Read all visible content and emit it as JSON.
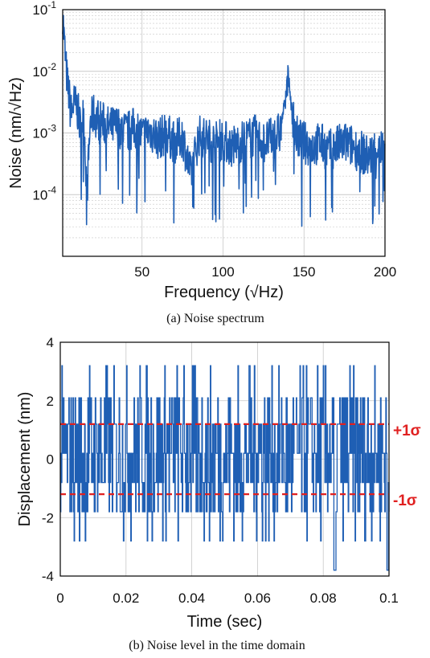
{
  "colors": {
    "line": "#1f5fb4",
    "sigma": "#e02020",
    "grid": "#c8c8c8",
    "axis": "#000000"
  },
  "chart_data": [
    {
      "type": "line",
      "caption": "(a) Noise spectrum",
      "xlabel": "Frequency (√Hz)",
      "ylabel": "Noise (nm/√Hz)",
      "xlim": [
        1,
        200
      ],
      "ylim": [
        1e-05,
        0.1
      ],
      "yscale": "log",
      "grid": true,
      "xticks": [
        {
          "v": 50,
          "label": "50"
        },
        {
          "v": 100,
          "label": "100"
        },
        {
          "v": 150,
          "label": "150"
        },
        {
          "v": 200,
          "label": "200"
        }
      ],
      "yticks": [
        {
          "v": 0.1,
          "base": "10",
          "exp": "-1"
        },
        {
          "v": 0.01,
          "base": "10",
          "exp": "-2"
        },
        {
          "v": 0.001,
          "base": "10",
          "exp": "-3"
        },
        {
          "v": 0.0001,
          "base": "10",
          "exp": "-4"
        }
      ],
      "series": [
        {
          "x": [
            1,
            2,
            3,
            4,
            5,
            6,
            8,
            10,
            12,
            14,
            16,
            18,
            20,
            25,
            30,
            35,
            40,
            45,
            50,
            55,
            60,
            65,
            70,
            75,
            80,
            85,
            90,
            95,
            100,
            105,
            110,
            115,
            120,
            125,
            130,
            135,
            138,
            140,
            142,
            145,
            150,
            155,
            160,
            165,
            170,
            175,
            180,
            185,
            190,
            195,
            200
          ],
          "y": [
            0.09,
            0.03,
            0.012,
            0.006,
            0.004,
            0.002,
            0.003,
            0.0025,
            0.0012,
            0.002,
            0.0001,
            0.0015,
            0.002,
            0.0015,
            0.0012,
            0.0013,
            0.001,
            0.0012,
            0.0009,
            0.0011,
            0.0008,
            0.001,
            0.0007,
            0.0009,
            0.0002,
            0.0009,
            0.0008,
            0.0007,
            0.0008,
            0.0006,
            0.0007,
            0.0008,
            0.0009,
            0.0007,
            0.0008,
            0.001,
            0.003,
            0.011,
            0.003,
            0.0009,
            0.0007,
            0.0006,
            0.0007,
            0.0005,
            0.0006,
            0.0007,
            0.0006,
            0.0005,
            0.0004,
            0.0006,
            0.0005
          ]
        }
      ]
    },
    {
      "type": "line",
      "caption": "(b) Noise level in the time domain",
      "xlabel": "Time (sec)",
      "ylabel": "Displacement (nm)",
      "xlim": [
        0,
        0.1
      ],
      "ylim": [
        -4,
        4
      ],
      "grid": true,
      "xticks": [
        {
          "v": 0,
          "label": "0"
        },
        {
          "v": 0.02,
          "label": "0.02"
        },
        {
          "v": 0.04,
          "label": "0.04"
        },
        {
          "v": 0.06,
          "label": "0.06"
        },
        {
          "v": 0.08,
          "label": "0.08"
        },
        {
          "v": 0.1,
          "label": "0.1"
        }
      ],
      "yticks": [
        {
          "v": 4,
          "label": "4"
        },
        {
          "v": 2,
          "label": "2"
        },
        {
          "v": 0,
          "label": "0"
        },
        {
          "v": -2,
          "label": "-2"
        },
        {
          "v": -4,
          "label": "-4"
        }
      ],
      "levels": [
        -2.8,
        -1.8,
        -0.8,
        0.2,
        1.2,
        2.1,
        3.2
      ],
      "sigma": [
        {
          "value": 1.2,
          "label": "+1σ"
        },
        {
          "value": -1.2,
          "label": "-1σ"
        }
      ],
      "series": [
        {
          "x": [
            0,
            0.005,
            0.01,
            0.015,
            0.02,
            0.025,
            0.03,
            0.035,
            0.04,
            0.045,
            0.05,
            0.055,
            0.06,
            0.065,
            0.07,
            0.075,
            0.08,
            0.085,
            0.09,
            0.095,
            0.1
          ],
          "y": [
            0.2,
            1.2,
            -0.8,
            2.1,
            0.2,
            -1.8,
            1.2,
            0.2,
            -0.8,
            2.1,
            0.2,
            -0.8,
            1.2,
            0.2,
            -1.8,
            0.2,
            1.2,
            -0.8,
            2.1,
            0.2,
            -0.8
          ]
        }
      ]
    }
  ]
}
